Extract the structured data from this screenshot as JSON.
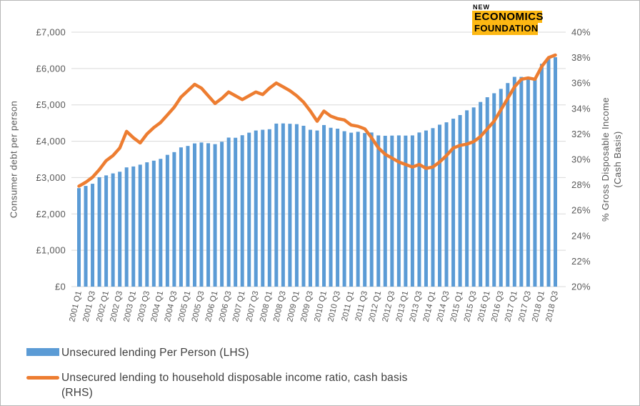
{
  "logo": {
    "line1": "NEW",
    "line2": "ECONOMICS",
    "line3": "FOUNDATION"
  },
  "colors": {
    "bar": "#5b9bd5",
    "line": "#ed7d31",
    "grid": "#d9d9d9",
    "axis_text": "#595959",
    "logo_highlight": "#fdb813"
  },
  "left_axis": {
    "title": "Consumer debt per person",
    "ticks": [
      "£7,000",
      "£6,000",
      "£5,000",
      "£4,000",
      "£3,000",
      "£2,000",
      "£1,000",
      "£0"
    ]
  },
  "right_axis": {
    "title_line1": "% Gross Disposable Income",
    "title_line2": "(Cash Basis)",
    "ticks": [
      "40%",
      "38%",
      "36%",
      "34%",
      "32%",
      "30%",
      "28%",
      "26%",
      "24%",
      "22%",
      "20%"
    ]
  },
  "legend": {
    "bars_label": "Unsecured lending Per Person (LHS)",
    "line_label_line1": "Unsecured lending to household disposable income ratio, cash basis",
    "line_label_line2": "(RHS)"
  },
  "chart_data": {
    "type": "bar",
    "note_type": "combo bar + line, dual axis",
    "x": [
      "2001 Q1",
      "2001 Q2",
      "2001 Q3",
      "2001 Q4",
      "2002 Q1",
      "2002 Q2",
      "2002 Q3",
      "2002 Q4",
      "2003 Q1",
      "2003 Q2",
      "2003 Q3",
      "2003 Q4",
      "2004 Q1",
      "2004 Q2",
      "2004 Q3",
      "2004 Q4",
      "2005 Q1",
      "2005 Q2",
      "2005 Q3",
      "2005 Q4",
      "2006 Q1",
      "2006 Q2",
      "2006 Q3",
      "2006 Q4",
      "2007 Q1",
      "2007 Q2",
      "2007 Q3",
      "2007 Q4",
      "2008 Q1",
      "2008 Q2",
      "2008 Q3",
      "2008 Q4",
      "2009 Q1",
      "2009 Q2",
      "2009 Q3",
      "2009 Q4",
      "2010 Q1",
      "2010 Q2",
      "2010 Q3",
      "2010 Q4",
      "2011 Q1",
      "2011 Q2",
      "2011 Q3",
      "2011 Q4",
      "2012 Q1",
      "2012 Q2",
      "2012 Q3",
      "2012 Q4",
      "2013 Q1",
      "2013 Q2",
      "2013 Q3",
      "2013 Q4",
      "2014 Q1",
      "2014 Q2",
      "2014 Q3",
      "2014 Q4",
      "2015 Q1",
      "2015 Q2",
      "2015 Q3",
      "2015 Q4",
      "2016 Q1",
      "2016 Q2",
      "2016 Q3",
      "2016 Q4",
      "2017 Q1",
      "2017 Q2",
      "2017 Q3",
      "2017 Q4",
      "2018 Q1",
      "2018 Q2",
      "2018 Q3"
    ],
    "x_tick_every": 2,
    "series": [
      {
        "name": "Unsecured lending Per Person (LHS)",
        "type": "bar",
        "axis": "left",
        "color": "#5b9bd5",
        "values": [
          2710,
          2770,
          2830,
          3010,
          3060,
          3115,
          3160,
          3280,
          3305,
          3355,
          3420,
          3465,
          3515,
          3625,
          3700,
          3830,
          3870,
          3940,
          3965,
          3945,
          3920,
          3985,
          4100,
          4095,
          4165,
          4235,
          4295,
          4315,
          4330,
          4485,
          4490,
          4480,
          4470,
          4425,
          4315,
          4295,
          4445,
          4370,
          4345,
          4275,
          4235,
          4260,
          4225,
          4240,
          4160,
          4150,
          4155,
          4160,
          4155,
          4160,
          4240,
          4295,
          4360,
          4455,
          4520,
          4620,
          4720,
          4850,
          4930,
          5080,
          5210,
          5320,
          5440,
          5600,
          5770,
          5770,
          5720,
          5740,
          6130,
          6280,
          6310
        ]
      },
      {
        "name": "Unsecured lending to household disposable income ratio, cash basis (RHS)",
        "type": "line",
        "axis": "right",
        "color": "#ed7d31",
        "values": [
          27.9,
          28.2,
          28.6,
          29.2,
          29.9,
          30.3,
          30.9,
          32.2,
          31.7,
          31.3,
          32.0,
          32.5,
          32.9,
          33.5,
          34.1,
          34.9,
          35.4,
          35.9,
          35.6,
          35.0,
          34.4,
          34.8,
          35.3,
          35.0,
          34.7,
          35.0,
          35.3,
          35.1,
          35.6,
          36.0,
          35.7,
          35.4,
          35.0,
          34.5,
          33.8,
          33.0,
          33.8,
          33.4,
          33.2,
          33.1,
          32.7,
          32.6,
          32.4,
          31.7,
          30.9,
          30.4,
          30.1,
          29.8,
          29.6,
          29.4,
          29.6,
          29.3,
          29.4,
          29.8,
          30.3,
          30.9,
          31.1,
          31.2,
          31.4,
          31.8,
          32.4,
          33.0,
          33.9,
          34.8,
          35.7,
          36.3,
          36.4,
          36.3,
          37.3,
          38.0,
          38.2
        ]
      }
    ],
    "left_axis_label": "Consumer debt per person",
    "right_axis_label": "% Gross Disposable Income (Cash Basis)",
    "left_ylim": [
      0,
      7000
    ],
    "left_tick_step": 1000,
    "right_ylim": [
      20,
      40
    ],
    "right_tick_step": 2,
    "grid": "horizontal",
    "legend_position": "bottom-left"
  }
}
